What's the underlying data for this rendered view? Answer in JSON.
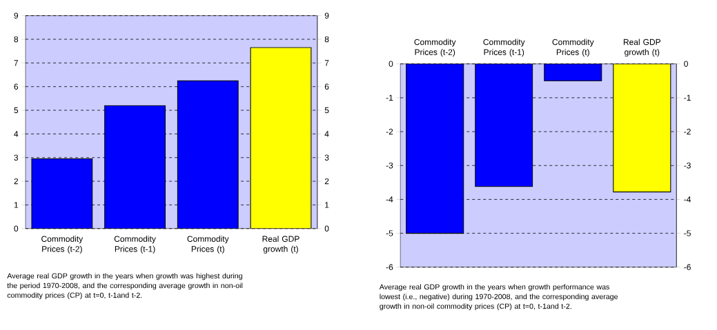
{
  "chart_data": [
    {
      "type": "bar",
      "categories": [
        "Commodity Prices (t-2)",
        "Commodity Prices (t-1)",
        "Commodity Prices (t)",
        "Real GDP growth (t)"
      ],
      "values": [
        2.95,
        5.2,
        6.25,
        7.65
      ],
      "colors": [
        "#0000ff",
        "#0000ff",
        "#0000ff",
        "#ffff00"
      ],
      "ylim": [
        0,
        9
      ],
      "yticks": [
        0,
        1,
        2,
        3,
        4,
        5,
        6,
        7,
        8,
        9
      ],
      "y2lim": [
        0,
        9
      ],
      "y2ticks": [
        0,
        1,
        2,
        3,
        4,
        5,
        6,
        7,
        8,
        9
      ],
      "grid": "y",
      "annotations": [
        "Average real GDP growth in the years when growth was highest during the period 1970-2008, and the corresponding average growth in non-oil commodity prices (CP) at t=0, t-1and t-2."
      ]
    },
    {
      "type": "bar",
      "categories": [
        "Commodity Prices (t-2)",
        "Commodity Prices (t-1)",
        "Commodity Prices (t)",
        "Real GDP growth (t)"
      ],
      "values": [
        -5.0,
        -3.62,
        -0.5,
        -3.78
      ],
      "colors": [
        "#0000ff",
        "#0000ff",
        "#0000ff",
        "#ffff00"
      ],
      "ylim": [
        -6,
        0
      ],
      "yticks": [
        -6,
        -5,
        -4,
        -3,
        -2,
        -1,
        0
      ],
      "y2lim": [
        -6,
        0
      ],
      "y2ticks": [
        -6,
        -5,
        -4,
        -3,
        -2,
        -1,
        0
      ],
      "grid": "y",
      "annotations": [
        "Average real GDP growth in the years when growth performance was lowest (i.e., negative) during 1970-2008, and the corresponding average growth in non-oil commodity prices (CP) at t=0, t-1and t-2."
      ]
    }
  ]
}
